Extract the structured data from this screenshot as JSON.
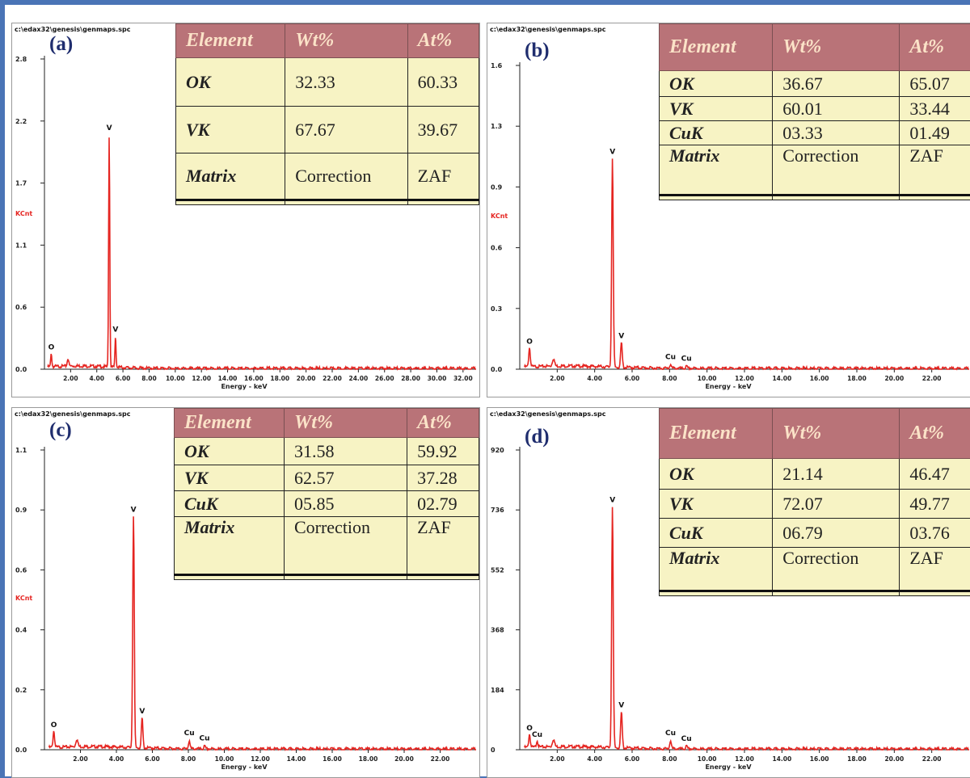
{
  "colors": {
    "spectrum": "#e52521",
    "axis_ylabel": "#e52521",
    "header_bg": "#b97378",
    "table_bg": "#f7f3c4",
    "label": "#1f2d6e",
    "background": "#4a74b6"
  },
  "chart_data": [
    {
      "type": "line",
      "panel": "(a)",
      "file": "c:\\edax32\\genesis\\genmaps.spc",
      "xlabel": "Energy - keV",
      "ylabel": "KCnt",
      "xlim": [
        0,
        33
      ],
      "ylim": [
        0,
        2.8
      ],
      "yticks": [
        "2.8",
        "2.2",
        "1.7",
        "1.1",
        "0.6",
        "0.0"
      ],
      "xticks": [
        "2.00",
        "4.00",
        "6.00",
        "8.00",
        "10.00",
        "12.00",
        "14.00",
        "16.00",
        "18.00",
        "20.00",
        "22.00",
        "24.00",
        "26.00",
        "28.00",
        "30.00",
        "32.00"
      ],
      "peaks": [
        {
          "label": "O",
          "energy": 0.52,
          "height": 0.12
        },
        {
          "label": "V",
          "energy": 4.95,
          "height": 2.1
        },
        {
          "label": "V",
          "energy": 5.43,
          "height": 0.28
        }
      ],
      "table": {
        "headers": [
          "Element",
          "Wt%",
          "At%"
        ],
        "rows": [
          [
            "OK",
            "32.33",
            "60.33"
          ],
          [
            "VK",
            "67.67",
            "39.67"
          ],
          [
            "Matrix",
            "Correction",
            "ZAF"
          ]
        ]
      }
    },
    {
      "type": "line",
      "panel": "(b)",
      "file": "c:\\edax32\\genesis\\genmaps.spc",
      "xlabel": "Energy - keV",
      "ylabel": "KCnt",
      "xlim": [
        0,
        24
      ],
      "ylim": [
        0,
        1.6
      ],
      "yticks": [
        "1.6",
        "1.3",
        "0.9",
        "0.6",
        "0.3",
        "0.0"
      ],
      "xticks": [
        "2.00",
        "4.00",
        "6.00",
        "8.00",
        "10.00",
        "12.00",
        "14.00",
        "16.00",
        "18.00",
        "20.00",
        "22.00"
      ],
      "peaks": [
        {
          "label": "O",
          "energy": 0.52,
          "height": 0.1
        },
        {
          "label": "V",
          "energy": 4.95,
          "height": 1.1
        },
        {
          "label": "V",
          "energy": 5.43,
          "height": 0.13
        },
        {
          "label": "Cu",
          "energy": 8.05,
          "height": 0.02
        },
        {
          "label": "Cu",
          "energy": 8.9,
          "height": 0.01
        }
      ],
      "table": {
        "headers": [
          "Element",
          "Wt%",
          "At%"
        ],
        "rows": [
          [
            "OK",
            "36.67",
            "65.07"
          ],
          [
            "VK",
            "60.01",
            "33.44"
          ],
          [
            "CuK",
            "03.33",
            "01.49"
          ],
          [
            "Matrix",
            "Correction",
            "ZAF"
          ]
        ]
      }
    },
    {
      "type": "line",
      "panel": "(c)",
      "file": "c:\\edax32\\genesis\\genmaps.spc",
      "xlabel": "Energy - keV",
      "ylabel": "KCnt",
      "xlim": [
        0,
        24
      ],
      "ylim": [
        0,
        1.1
      ],
      "yticks": [
        "1.1",
        "0.9",
        "0.6",
        "0.4",
        "0.2",
        "0.0"
      ],
      "xticks": [
        "2.00",
        "4.00",
        "6.00",
        "8.00",
        "10.00",
        "12.00",
        "14.00",
        "16.00",
        "18.00",
        "20.00",
        "22.00"
      ],
      "peaks": [
        {
          "label": "O",
          "energy": 0.52,
          "height": 0.06
        },
        {
          "label": "V",
          "energy": 4.95,
          "height": 0.85
        },
        {
          "label": "V",
          "energy": 5.43,
          "height": 0.11
        },
        {
          "label": "Cu",
          "energy": 8.05,
          "height": 0.03
        },
        {
          "label": "Cu",
          "energy": 8.9,
          "height": 0.01
        }
      ],
      "table": {
        "headers": [
          "Element",
          "Wt%",
          "At%"
        ],
        "rows": [
          [
            "OK",
            "31.58",
            "59.92"
          ],
          [
            "VK",
            "62.57",
            "37.28"
          ],
          [
            "CuK",
            "05.85",
            "02.79"
          ],
          [
            "Matrix",
            "Correction",
            "ZAF"
          ]
        ]
      }
    },
    {
      "type": "line",
      "panel": "(d)",
      "file": "c:\\edax32\\genesis\\genmaps.spc",
      "xlabel": "Energy - keV",
      "ylabel": "",
      "xlim": [
        0,
        24
      ],
      "ylim": [
        0,
        920
      ],
      "yticks": [
        "920",
        "736",
        "552",
        "368",
        "184",
        "0"
      ],
      "xticks": [
        "2.00",
        "4.00",
        "6.00",
        "8.00",
        "10.00",
        "12.00",
        "14.00",
        "16.00",
        "18.00",
        "20.00",
        "22.00"
      ],
      "peaks": [
        {
          "label": "O",
          "energy": 0.52,
          "height": 40
        },
        {
          "label": "Cu",
          "energy": 0.93,
          "height": 20
        },
        {
          "label": "V",
          "energy": 4.95,
          "height": 740
        },
        {
          "label": "V",
          "energy": 5.43,
          "height": 110
        },
        {
          "label": "Cu",
          "energy": 8.05,
          "height": 25
        },
        {
          "label": "Cu",
          "energy": 8.9,
          "height": 8
        }
      ],
      "table": {
        "headers": [
          "Element",
          "Wt%",
          "At%"
        ],
        "rows": [
          [
            "OK",
            "21.14",
            "46.47"
          ],
          [
            "VK",
            "72.07",
            "49.77"
          ],
          [
            "CuK",
            "06.79",
            "03.76"
          ],
          [
            "Matrix",
            "Correction",
            "ZAF"
          ]
        ]
      }
    }
  ]
}
